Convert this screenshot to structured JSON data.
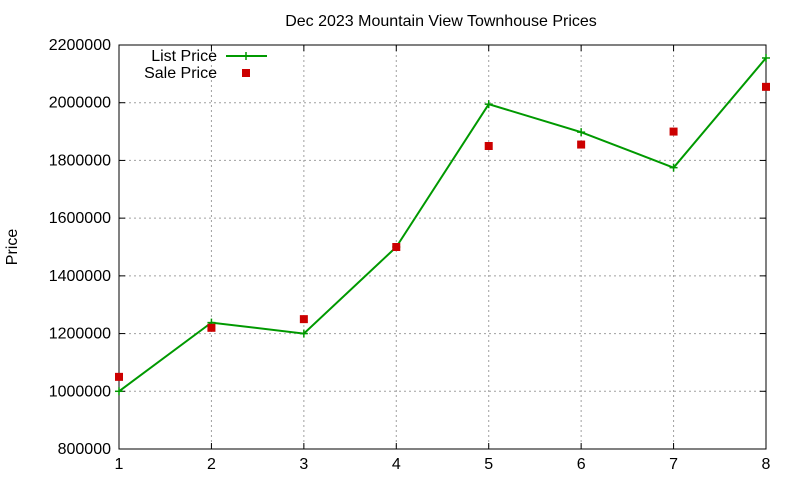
{
  "chart_data": {
    "type": "line",
    "title": "Dec 2023 Mountain View Townhouse Prices",
    "xlabel": "",
    "ylabel": "Price",
    "x": [
      1,
      2,
      3,
      4,
      5,
      6,
      7,
      8
    ],
    "xlim": [
      1,
      8
    ],
    "ylim": [
      800000,
      2200000
    ],
    "xticks": [
      "1",
      "2",
      "3",
      "4",
      "5",
      "6",
      "7",
      "8"
    ],
    "yticks": [
      "800000",
      "1000000",
      "1200000",
      "1400000",
      "1600000",
      "1800000",
      "2000000",
      "2200000"
    ],
    "grid": true,
    "legend_position": "top-left",
    "series": [
      {
        "name": "List Price",
        "style": "line+cross",
        "color": "#009900",
        "values": [
          1000000,
          1238000,
          1200000,
          1500000,
          1995000,
          1898000,
          1775000,
          2155000
        ]
      },
      {
        "name": "Sale Price",
        "style": "square",
        "color": "#cc0000",
        "values": [
          1050000,
          1220000,
          1250000,
          1500000,
          1850000,
          1855000,
          1900000,
          2055000
        ]
      }
    ]
  }
}
